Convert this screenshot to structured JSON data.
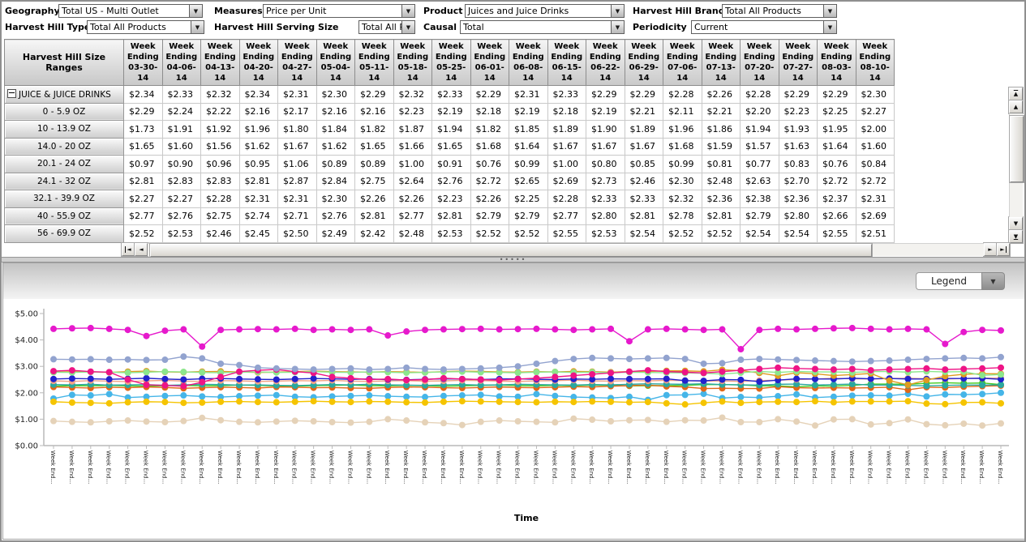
{
  "ui": {
    "icons": {
      "dropdown_arrow": "▼",
      "scroll_up": "▲",
      "scroll_down": "▼",
      "scroll_left": "◄",
      "scroll_right": "►",
      "collapse_minus": "−"
    },
    "splitter_dots": "•••••"
  },
  "filters": [
    {
      "label": "Geography",
      "value": "Total US - Multi Outlet"
    },
    {
      "label": "Measures",
      "value": "Price per Unit"
    },
    {
      "label": "Product",
      "value": "Juices and Juice Drinks"
    },
    {
      "label": "Harvest Hill Brand",
      "value": "Total All Products"
    },
    {
      "label": "Harvest Hill Type",
      "value": "Total All Products"
    },
    {
      "label": "Harvest Hill Serving Size",
      "value": "Total All Products"
    },
    {
      "label": "Causal",
      "value": "Total"
    },
    {
      "label": "Periodicity",
      "value": "Current"
    }
  ],
  "table": {
    "corner_header": "Harvest Hill Size Ranges",
    "column_prefix": "Week Ending",
    "column_dates": [
      "03-30-14",
      "04-06-14",
      "04-13-14",
      "04-20-14",
      "04-27-14",
      "05-04-14",
      "05-11-14",
      "05-18-14",
      "05-25-14",
      "06-01-14",
      "06-08-14",
      "06-15-14",
      "06-22-14",
      "06-29-14",
      "07-06-14",
      "07-13-14",
      "07-20-14",
      "07-27-14",
      "08-03-14",
      "08-10-14"
    ],
    "rows": [
      {
        "label": "JUICE & JUICE DRINKS",
        "has_collapse_toggle": true,
        "values": [
          2.34,
          2.33,
          2.32,
          2.34,
          2.31,
          2.3,
          2.29,
          2.32,
          2.33,
          2.29,
          2.31,
          2.33,
          2.29,
          2.29,
          2.28,
          2.26,
          2.28,
          2.29,
          2.29,
          2.3
        ]
      },
      {
        "label": "0 - 5.9 OZ",
        "has_collapse_toggle": false,
        "values": [
          2.29,
          2.24,
          2.22,
          2.16,
          2.17,
          2.16,
          2.16,
          2.23,
          2.19,
          2.18,
          2.19,
          2.18,
          2.19,
          2.21,
          2.11,
          2.21,
          2.2,
          2.23,
          2.25,
          2.27
        ]
      },
      {
        "label": "10 - 13.9 OZ",
        "has_collapse_toggle": false,
        "values": [
          1.73,
          1.91,
          1.92,
          1.96,
          1.8,
          1.84,
          1.82,
          1.87,
          1.94,
          1.82,
          1.85,
          1.89,
          1.9,
          1.89,
          1.96,
          1.86,
          1.94,
          1.93,
          1.95,
          2.0
        ]
      },
      {
        "label": "14.0 - 20 OZ",
        "has_collapse_toggle": false,
        "values": [
          1.65,
          1.6,
          1.56,
          1.62,
          1.67,
          1.62,
          1.65,
          1.66,
          1.65,
          1.68,
          1.64,
          1.67,
          1.67,
          1.67,
          1.68,
          1.59,
          1.57,
          1.63,
          1.64,
          1.6
        ]
      },
      {
        "label": "20.1 - 24 OZ",
        "has_collapse_toggle": false,
        "values": [
          0.97,
          0.9,
          0.96,
          0.95,
          1.06,
          0.89,
          0.89,
          1.0,
          0.91,
          0.76,
          0.99,
          1.0,
          0.8,
          0.85,
          0.99,
          0.81,
          0.77,
          0.83,
          0.76,
          0.84
        ]
      },
      {
        "label": "24.1 - 32 OZ",
        "has_collapse_toggle": false,
        "values": [
          2.81,
          2.83,
          2.83,
          2.81,
          2.87,
          2.84,
          2.75,
          2.64,
          2.76,
          2.72,
          2.65,
          2.69,
          2.73,
          2.46,
          2.3,
          2.48,
          2.63,
          2.7,
          2.72,
          2.72
        ]
      },
      {
        "label": "32.1 - 39.9 OZ",
        "has_collapse_toggle": false,
        "values": [
          2.27,
          2.27,
          2.28,
          2.31,
          2.31,
          2.3,
          2.26,
          2.26,
          2.23,
          2.26,
          2.25,
          2.28,
          2.33,
          2.33,
          2.32,
          2.36,
          2.38,
          2.36,
          2.37,
          2.31
        ]
      },
      {
        "label": "40 - 55.9 OZ",
        "has_collapse_toggle": false,
        "values": [
          2.77,
          2.76,
          2.75,
          2.74,
          2.71,
          2.76,
          2.81,
          2.77,
          2.81,
          2.79,
          2.79,
          2.77,
          2.8,
          2.81,
          2.78,
          2.81,
          2.79,
          2.8,
          2.66,
          2.69
        ]
      },
      {
        "label": "56 - 69.9 OZ",
        "has_collapse_toggle": false,
        "values": [
          2.52,
          2.53,
          2.46,
          2.45,
          2.5,
          2.49,
          2.42,
          2.48,
          2.53,
          2.52,
          2.52,
          2.55,
          2.53,
          2.54,
          2.52,
          2.52,
          2.54,
          2.54,
          2.55,
          2.51
        ]
      }
    ]
  },
  "chart_data": {
    "type": "line",
    "xlabel": "Time",
    "x_tick_label": "Week End...",
    "x_count": 52,
    "y_ticks": [
      "$0.00",
      "$1.00",
      "$2.00",
      "$3.00",
      "$4.00",
      "$5.00"
    ],
    "ylim": [
      0,
      5
    ],
    "legend_label": "Legend",
    "legend_position": "top-right-collapsed",
    "grid": false,
    "series": [
      {
        "name": "series-tan",
        "color": "#E5D2B8",
        "values": [
          0.93,
          0.9,
          0.88,
          0.92,
          0.95,
          0.91,
          0.89,
          0.93,
          1.05,
          0.96,
          0.9,
          0.88,
          0.91,
          0.94,
          0.92,
          0.89,
          0.87,
          0.9,
          1.0,
          0.95,
          0.88,
          0.85,
          0.78,
          0.9,
          0.95,
          0.92,
          0.9,
          0.88,
          1.02,
          0.98,
          0.92,
          0.96,
          0.97,
          0.9,
          0.96,
          0.95,
          1.06,
          0.89,
          0.89,
          1.0,
          0.91,
          0.76,
          0.99,
          1.0,
          0.8,
          0.85,
          0.99,
          0.81,
          0.77,
          0.83,
          0.76,
          0.84
        ]
      },
      {
        "name": "series-sky-blue",
        "color": "#45B5E8",
        "values": [
          1.78,
          1.92,
          1.9,
          1.95,
          1.82,
          1.85,
          1.88,
          1.9,
          1.86,
          1.84,
          1.87,
          1.89,
          1.91,
          1.85,
          1.83,
          1.86,
          1.88,
          1.9,
          1.87,
          1.85,
          1.84,
          1.88,
          1.9,
          1.92,
          1.86,
          1.85,
          1.95,
          1.88,
          1.84,
          1.82,
          1.8,
          1.85,
          1.73,
          1.91,
          1.92,
          1.96,
          1.8,
          1.84,
          1.82,
          1.87,
          1.94,
          1.82,
          1.85,
          1.89,
          1.9,
          1.89,
          1.96,
          1.86,
          1.94,
          1.93,
          1.95,
          2.0
        ]
      },
      {
        "name": "series-gold",
        "color": "#F5C400",
        "values": [
          1.66,
          1.63,
          1.62,
          1.6,
          1.64,
          1.66,
          1.65,
          1.62,
          1.63,
          1.66,
          1.67,
          1.65,
          1.64,
          1.66,
          1.68,
          1.66,
          1.65,
          1.67,
          1.66,
          1.64,
          1.63,
          1.66,
          1.68,
          1.67,
          1.66,
          1.65,
          1.64,
          1.66,
          1.65,
          1.67,
          1.66,
          1.64,
          1.65,
          1.6,
          1.56,
          1.62,
          1.67,
          1.62,
          1.65,
          1.66,
          1.65,
          1.68,
          1.64,
          1.67,
          1.67,
          1.67,
          1.68,
          1.59,
          1.57,
          1.63,
          1.64,
          1.6
        ]
      },
      {
        "name": "series-lime-green",
        "color": "#44CC22",
        "values": [
          2.25,
          2.27,
          2.26,
          2.28,
          2.26,
          2.25,
          2.27,
          2.28,
          2.26,
          2.27,
          2.29,
          2.28,
          2.26,
          2.25,
          2.27,
          2.28,
          2.29,
          2.27,
          2.26,
          2.28,
          2.27,
          2.25,
          2.26,
          2.28,
          2.29,
          2.27,
          2.26,
          2.28,
          2.27,
          2.29,
          2.28,
          2.26,
          2.27,
          2.27,
          2.28,
          2.31,
          2.31,
          2.3,
          2.26,
          2.26,
          2.23,
          2.26,
          2.25,
          2.28,
          2.33,
          2.33,
          2.32,
          2.36,
          2.38,
          2.36,
          2.37,
          2.31
        ]
      },
      {
        "name": "series-orange-red",
        "color": "#E06818",
        "values": [
          2.22,
          2.2,
          2.18,
          2.21,
          2.19,
          2.22,
          2.2,
          2.17,
          2.19,
          2.21,
          2.2,
          2.18,
          2.22,
          2.21,
          2.19,
          2.2,
          2.18,
          2.17,
          2.2,
          2.22,
          2.21,
          2.19,
          2.18,
          2.2,
          2.22,
          2.2,
          2.19,
          2.21,
          2.23,
          2.22,
          2.25,
          2.27,
          2.29,
          2.24,
          2.22,
          2.16,
          2.17,
          2.16,
          2.16,
          2.23,
          2.19,
          2.18,
          2.19,
          2.18,
          2.19,
          2.21,
          2.11,
          2.21,
          2.2,
          2.23,
          2.25,
          2.27
        ]
      },
      {
        "name": "series-teal",
        "color": "#2AA7A0",
        "values": [
          2.31,
          2.3,
          2.32,
          2.29,
          2.3,
          2.31,
          2.28,
          2.3,
          2.32,
          2.31,
          2.29,
          2.3,
          2.28,
          2.27,
          2.29,
          2.31,
          2.3,
          2.32,
          2.3,
          2.29,
          2.28,
          2.3,
          2.31,
          2.29,
          2.3,
          2.32,
          2.31,
          2.3,
          2.29,
          2.31,
          2.3,
          2.32,
          2.34,
          2.33,
          2.32,
          2.34,
          2.31,
          2.3,
          2.29,
          2.32,
          2.33,
          2.29,
          2.31,
          2.33,
          2.29,
          2.29,
          2.28,
          2.26,
          2.28,
          2.29,
          2.29,
          2.3
        ]
      },
      {
        "name": "series-salmon",
        "color": "#F2A285",
        "values": [
          2.45,
          2.43,
          2.46,
          2.44,
          2.42,
          2.45,
          2.47,
          2.44,
          2.43,
          2.46,
          2.45,
          2.43,
          2.44,
          2.46,
          2.45,
          2.47,
          2.44,
          2.43,
          2.45,
          2.46,
          2.44,
          2.45,
          2.47,
          2.46,
          2.44,
          2.43,
          2.45,
          2.46,
          2.48,
          2.45,
          2.44,
          2.46,
          2.45,
          2.47,
          2.46,
          2.44,
          2.45,
          2.43,
          2.46,
          2.48,
          2.5,
          2.52,
          2.55,
          2.53,
          2.52,
          2.54,
          2.55,
          2.53,
          2.52,
          2.54,
          2.55,
          2.56
        ]
      },
      {
        "name": "series-royal-blue",
        "color": "#2222CC",
        "values": [
          2.52,
          2.54,
          2.53,
          2.51,
          2.53,
          2.55,
          2.52,
          2.5,
          2.53,
          2.54,
          2.52,
          2.51,
          2.5,
          2.52,
          2.54,
          2.53,
          2.51,
          2.52,
          2.5,
          2.49,
          2.51,
          2.53,
          2.52,
          2.5,
          2.52,
          2.53,
          2.51,
          2.5,
          2.52,
          2.51,
          2.53,
          2.52,
          2.52,
          2.53,
          2.46,
          2.45,
          2.5,
          2.49,
          2.42,
          2.48,
          2.53,
          2.52,
          2.52,
          2.55,
          2.53,
          2.54,
          2.52,
          2.52,
          2.54,
          2.54,
          2.55,
          2.51
        ]
      },
      {
        "name": "series-orange",
        "color": "#DF9B20",
        "values": [
          2.78,
          2.8,
          2.79,
          2.77,
          2.8,
          2.82,
          2.79,
          2.78,
          2.8,
          2.81,
          2.79,
          2.77,
          2.78,
          2.8,
          2.82,
          2.8,
          2.79,
          2.78,
          2.8,
          2.79,
          2.77,
          2.8,
          2.82,
          2.81,
          2.79,
          2.78,
          2.8,
          2.79,
          2.81,
          2.8,
          2.78,
          2.8,
          2.81,
          2.83,
          2.83,
          2.81,
          2.87,
          2.84,
          2.75,
          2.64,
          2.76,
          2.72,
          2.65,
          2.69,
          2.73,
          2.46,
          2.3,
          2.48,
          2.63,
          2.7,
          2.72,
          2.72
        ]
      },
      {
        "name": "series-light-green",
        "color": "#8CE68C",
        "values": [
          2.78,
          2.77,
          2.79,
          2.78,
          2.76,
          2.78,
          2.8,
          2.79,
          2.77,
          2.76,
          2.78,
          2.79,
          2.77,
          2.78,
          2.8,
          2.78,
          2.77,
          2.79,
          2.78,
          2.76,
          2.77,
          2.79,
          2.8,
          2.78,
          2.77,
          2.76,
          2.78,
          2.79,
          2.77,
          2.78,
          2.76,
          2.78,
          2.77,
          2.76,
          2.75,
          2.74,
          2.71,
          2.76,
          2.81,
          2.77,
          2.81,
          2.79,
          2.79,
          2.77,
          2.8,
          2.81,
          2.78,
          2.81,
          2.79,
          2.8,
          2.66,
          2.69
        ]
      },
      {
        "name": "series-deep-pink",
        "color": "#EE1486",
        "values": [
          2.82,
          2.85,
          2.8,
          2.78,
          2.5,
          2.3,
          2.28,
          2.25,
          2.4,
          2.6,
          2.8,
          2.85,
          2.88,
          2.8,
          2.75,
          2.6,
          2.55,
          2.5,
          2.52,
          2.48,
          2.5,
          2.55,
          2.52,
          2.5,
          2.48,
          2.52,
          2.55,
          2.6,
          2.65,
          2.7,
          2.75,
          2.8,
          2.85,
          2.8,
          2.78,
          2.75,
          2.8,
          2.85,
          2.9,
          2.95,
          2.92,
          2.9,
          2.88,
          2.9,
          2.85,
          2.88,
          2.9,
          2.92,
          2.88,
          2.9,
          2.92,
          2.95
        ]
      },
      {
        "name": "series-slate-blue",
        "color": "#92A3CF",
        "values": [
          3.27,
          3.26,
          3.27,
          3.25,
          3.26,
          3.24,
          3.25,
          3.37,
          3.3,
          3.1,
          3.05,
          2.95,
          2.92,
          2.9,
          2.88,
          2.9,
          2.92,
          2.88,
          2.9,
          2.95,
          2.9,
          2.88,
          2.9,
          2.92,
          2.95,
          3.0,
          3.1,
          3.2,
          3.28,
          3.32,
          3.3,
          3.28,
          3.3,
          3.32,
          3.28,
          3.1,
          3.12,
          3.25,
          3.28,
          3.26,
          3.24,
          3.22,
          3.2,
          3.18,
          3.2,
          3.22,
          3.25,
          3.28,
          3.3,
          3.32,
          3.3,
          3.35
        ]
      },
      {
        "name": "series-magenta",
        "color": "#E619CC",
        "values": [
          4.42,
          4.44,
          4.45,
          4.42,
          4.38,
          4.15,
          4.35,
          4.4,
          3.75,
          4.38,
          4.4,
          4.41,
          4.4,
          4.42,
          4.38,
          4.4,
          4.38,
          4.4,
          4.17,
          4.32,
          4.38,
          4.4,
          4.41,
          4.42,
          4.4,
          4.41,
          4.42,
          4.4,
          4.38,
          4.4,
          4.42,
          3.95,
          4.4,
          4.42,
          4.4,
          4.38,
          4.4,
          3.65,
          4.38,
          4.42,
          4.4,
          4.42,
          4.44,
          4.45,
          4.42,
          4.4,
          4.42,
          4.4,
          3.85,
          4.3,
          4.38,
          4.36
        ]
      }
    ]
  }
}
